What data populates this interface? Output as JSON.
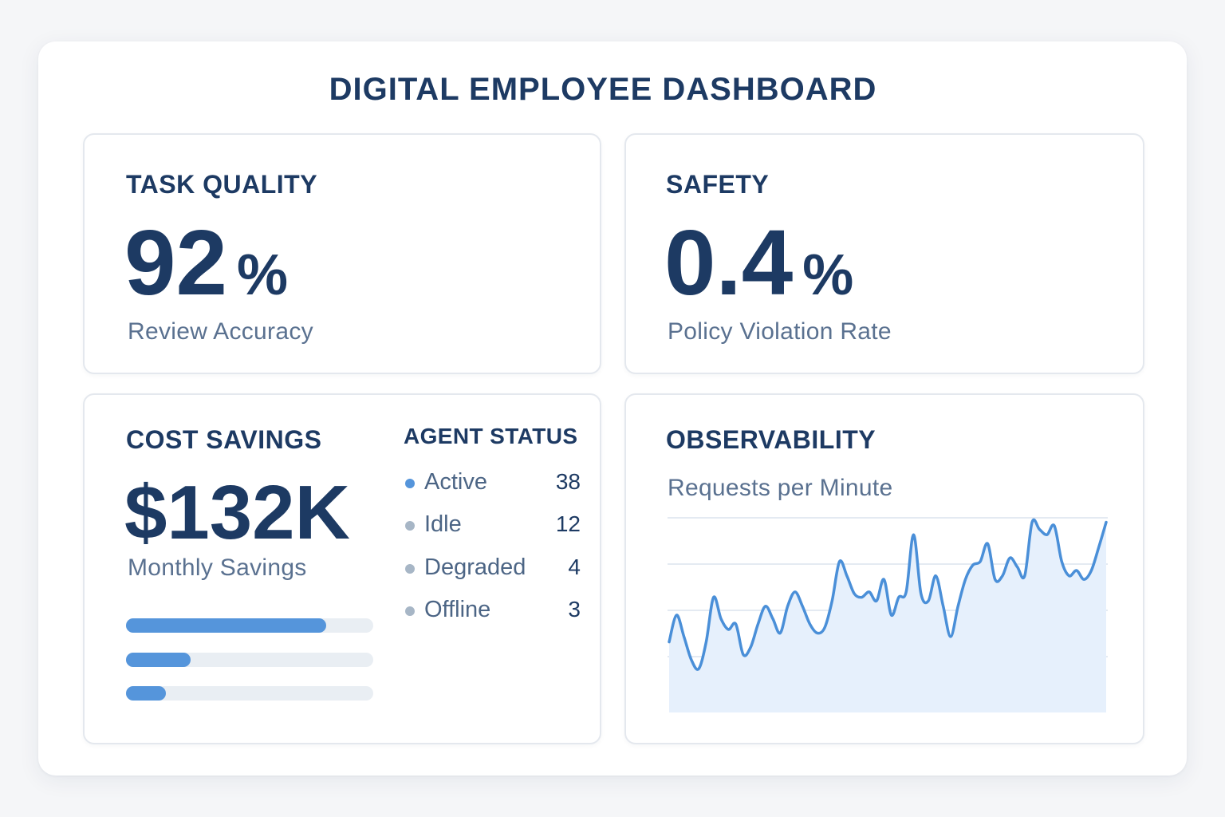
{
  "dashboard": {
    "title": "DIGITAL EMPLOYEE DASHBOARD"
  },
  "task_quality": {
    "title": "TASK QUALITY",
    "value": "92",
    "unit": "%",
    "caption": "Review Accuracy"
  },
  "safety": {
    "title": "SAFETY",
    "value": "0.4",
    "unit": "%",
    "caption": "Policy Violation Rate"
  },
  "cost_savings": {
    "title": "COST SAVINGS",
    "value": "$132K",
    "caption": "Monthly Savings",
    "bars": [
      {
        "fraction": 0.81
      },
      {
        "fraction": 0.26
      },
      {
        "fraction": 0.16
      }
    ]
  },
  "agent_status": {
    "title": "AGENT STATUS",
    "items": [
      {
        "label": "Active",
        "count": "38",
        "color": "#5595db"
      },
      {
        "label": "Idle",
        "count": "12",
        "color": "#a7b6c6"
      },
      {
        "label": "Degraded",
        "count": "4",
        "color": "#a7b6c6"
      },
      {
        "label": "Offline",
        "count": "3",
        "color": "#a7b6c6"
      }
    ]
  },
  "observability": {
    "title": "OBSERVABILITY",
    "subtitle": "Requests per Minute",
    "colors": {
      "line": "#4a8fd8",
      "area": "#e6f0fc",
      "grid": "#dbe3ee"
    }
  },
  "chart_data": {
    "type": "area",
    "title": "Requests per Minute",
    "xlabel": "",
    "ylabel": "",
    "grid": true,
    "ylim": [
      0,
      100
    ],
    "x": [
      0,
      1,
      2,
      3,
      4,
      5,
      6,
      7,
      8,
      9,
      10,
      11,
      12,
      13,
      14,
      15,
      16,
      17,
      18,
      19,
      20,
      21,
      22,
      23,
      24,
      25,
      26,
      27,
      28,
      29,
      30,
      31,
      32,
      33,
      34,
      35,
      36,
      37,
      38,
      39,
      40,
      41,
      42,
      43,
      44,
      45,
      46,
      47,
      48,
      49,
      50,
      51,
      52,
      53,
      54,
      55,
      56,
      57,
      58,
      59
    ],
    "values": [
      35,
      50,
      38,
      25,
      20,
      35,
      60,
      48,
      42,
      45,
      28,
      32,
      45,
      55,
      48,
      40,
      55,
      63,
      55,
      45,
      40,
      43,
      58,
      80,
      72,
      62,
      60,
      63,
      58,
      70,
      50,
      60,
      63,
      95,
      62,
      58,
      72,
      55,
      38,
      55,
      70,
      78,
      80,
      90,
      70,
      72,
      82,
      77,
      72,
      102,
      98,
      95,
      100,
      80,
      72,
      75,
      70,
      75,
      88,
      102
    ]
  }
}
